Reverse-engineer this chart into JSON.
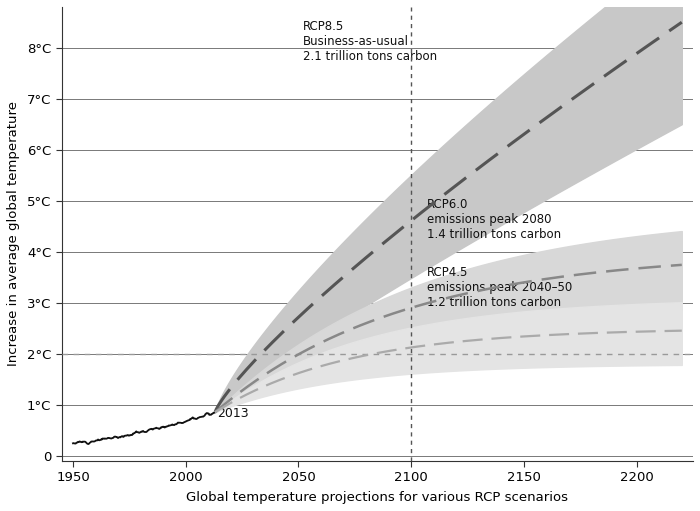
{
  "title": "",
  "xlabel": "Global temperature projections for various RCP scenarios",
  "ylabel": "Increase in average global temperature",
  "xlim": [
    1945,
    2225
  ],
  "ylim": [
    -0.1,
    8.8
  ],
  "xticks": [
    1950,
    2000,
    2050,
    2100,
    2150,
    2200
  ],
  "yticks": [
    0,
    1,
    2,
    3,
    4,
    5,
    6,
    7,
    8
  ],
  "ytick_labels": [
    "0",
    "1°C",
    "2°C",
    "3°C",
    "4°C",
    "5°C",
    "6°C",
    "7°C",
    "8°C"
  ],
  "background_color": "#ffffff",
  "rcp85_label": "RCP8.5\nBusiness-as-usual\n2.1 trillion tons carbon",
  "rcp60_label": "RCP6.0\nemissions peak 2080\n1.4 trillion tons carbon",
  "rcp45_label": "RCP4.5\nemissions peak 2040–50\n1.2 trillion tons carbon",
  "annotation_2013": "2013",
  "vline_x": 2100,
  "hline_y": 2.0,
  "line_color_historical": "#111111",
  "line_color_rcp85": "#555555",
  "line_color_rcp60": "#888888",
  "line_color_rcp45": "#aaaaaa",
  "shade_color_rcp85": "#c8c8c8",
  "shade_color_rcp60": "#d8d8d8",
  "shade_color_rcp45": "#e4e4e4",
  "hist_start_year": 1950,
  "hist_end_year": 2013,
  "proj_start_year": 2013,
  "proj_end_year": 2220
}
